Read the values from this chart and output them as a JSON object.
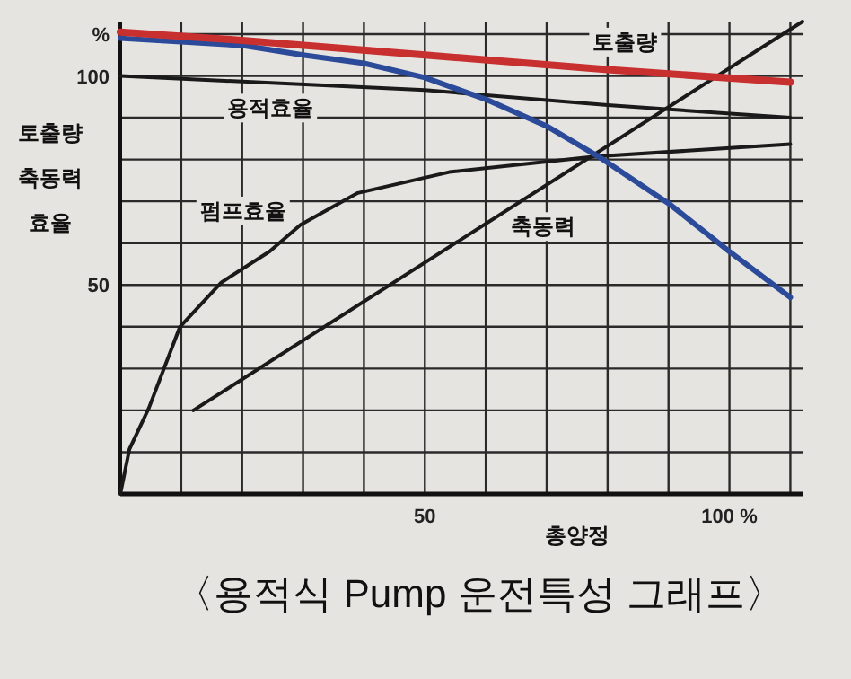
{
  "chart_data": {
    "type": "line",
    "title": "〈용적식 Pump 운전특성 그래프〉",
    "xlabel": "총양정",
    "ylabel": "토출량\n축동력\n효율",
    "xlim": [
      0,
      112
    ],
    "ylim": [
      0,
      113
    ],
    "xticks": [
      {
        "value": 10,
        "label": null
      },
      {
        "value": 20,
        "label": null
      },
      {
        "value": 30,
        "label": null
      },
      {
        "value": 40,
        "label": null
      },
      50,
      {
        "value": 60,
        "label": null
      },
      {
        "value": 70,
        "label": null
      },
      {
        "value": 80,
        "label": null
      },
      {
        "value": 90,
        "label": null
      },
      {
        "value": 100,
        "label": "100 %"
      },
      {
        "value": 110,
        "label": null
      }
    ],
    "yticks": [
      {
        "value": 10,
        "label": null
      },
      {
        "value": 20,
        "label": null
      },
      {
        "value": 30,
        "label": null
      },
      {
        "value": 40,
        "label": null
      },
      50,
      {
        "value": 60,
        "label": null
      },
      {
        "value": 70,
        "label": null
      },
      {
        "value": 80,
        "label": null
      },
      {
        "value": 90,
        "label": null
      },
      100,
      {
        "value": 110,
        "label": "%"
      }
    ],
    "grid": true,
    "series": [
      {
        "name": "용적효율",
        "color": "#1a1a1a",
        "x": [
          0,
          50,
          80,
          110
        ],
        "values": [
          100,
          96.6,
          93,
          90
        ]
      },
      {
        "name": "펌프효율",
        "color": "#1a1a1a",
        "x": [
          0,
          1.5,
          4.7,
          9.8,
          16.6,
          24.5,
          29.6,
          39,
          54,
          78,
          110
        ],
        "values": [
          0,
          10.7,
          20.6,
          40,
          50.6,
          58,
          64.4,
          72,
          77,
          80.7,
          83.7
        ]
      },
      {
        "name": "축동력",
        "color": "#1a1a1a",
        "x": [
          12,
          112
        ],
        "values": [
          20,
          113
        ]
      },
      {
        "color": "#2b4a9a",
        "x": [
          0,
          20,
          30,
          40,
          50,
          60,
          70,
          78.5,
          90,
          100,
          110
        ],
        "values": [
          109,
          107.3,
          105,
          103,
          99.6,
          94.4,
          88,
          80.7,
          69.5,
          58,
          47
        ]
      },
      {
        "name": "토출량",
        "color": "#c8302f",
        "x": [
          0,
          20,
          50,
          80,
          110
        ],
        "values": [
          110.5,
          108.5,
          105,
          101.5,
          98.5
        ]
      }
    ]
  }
}
